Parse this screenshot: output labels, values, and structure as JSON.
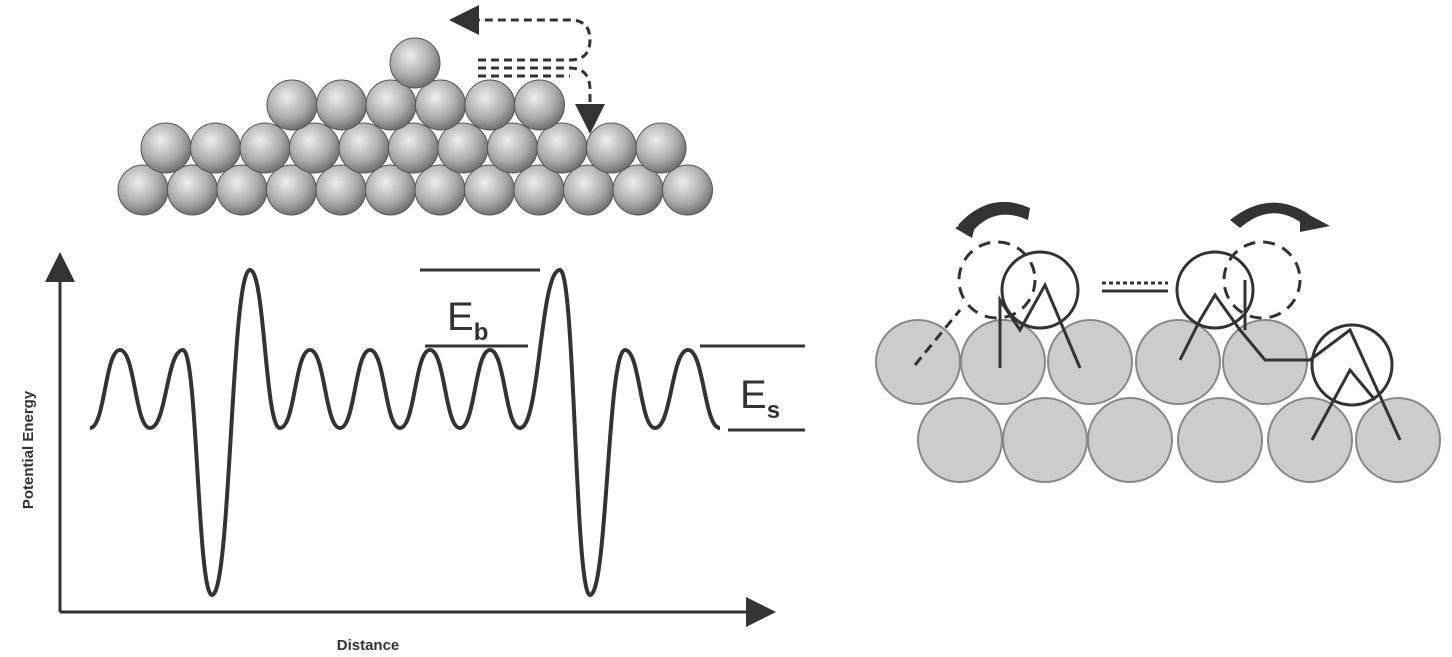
{
  "axes": {
    "y_label": "Potential Energy",
    "x_label": "Distance"
  },
  "barriers": [
    {
      "symbol": "E",
      "subscript": "b"
    },
    {
      "symbol": "E",
      "subscript": "s"
    }
  ]
}
